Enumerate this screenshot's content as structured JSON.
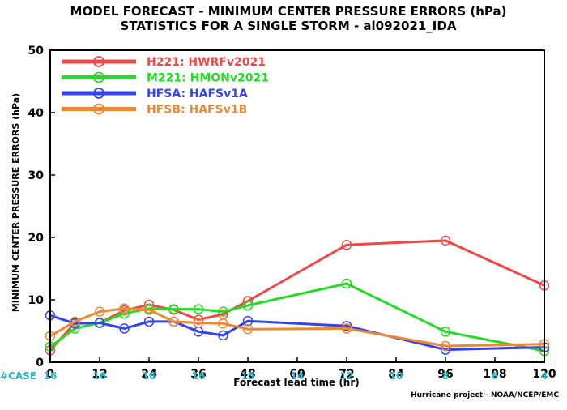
{
  "chart_data": {
    "type": "line",
    "title": "MODEL FORECAST - MINIMUM CENTER PRESSURE ERRORS (hPa)",
    "subtitle": "STATISTICS FOR A SINGLE STORM - al092021_IDA",
    "xlabel": "Forecast lead time (hr)",
    "ylabel": "MINIMUM CENTER PRESSURE ERRORS (hPa)",
    "xlim": [
      0,
      120
    ],
    "ylim": [
      0,
      50
    ],
    "x_ticks": [
      "0",
      "12",
      "24",
      "36",
      "48",
      "60",
      "72",
      "84",
      "96",
      "108",
      "120"
    ],
    "y_ticks": [
      "0",
      "10",
      "20",
      "30",
      "40",
      "50"
    ],
    "series": [
      {
        "name": "H221: HWRFv2021",
        "color": "#f04848",
        "x": [
          0,
          6,
          12,
          18,
          24,
          30,
          36,
          42,
          48,
          72,
          96,
          120
        ],
        "y": [
          1.9,
          6.3,
          6.3,
          8.3,
          9.2,
          8.4,
          6.8,
          7.7,
          9.8,
          18.8,
          19.5,
          12.3
        ]
      },
      {
        "name": "M221: HMONv2021",
        "color": "#22dd22",
        "x": [
          0,
          6,
          12,
          18,
          24,
          30,
          36,
          42,
          48,
          72,
          96,
          120
        ],
        "y": [
          2.5,
          5.4,
          6.3,
          7.8,
          8.6,
          8.5,
          8.5,
          8.1,
          9.1,
          12.6,
          4.9,
          1.8
        ]
      },
      {
        "name": "HFSA: HAFSv1A",
        "color": "#3344ee",
        "x": [
          0,
          6,
          12,
          18,
          24,
          30,
          36,
          42,
          48,
          72,
          96,
          120
        ],
        "y": [
          7.5,
          6.2,
          6.3,
          5.4,
          6.5,
          6.5,
          4.9,
          4.3,
          6.6,
          5.8,
          2.0,
          2.4
        ]
      },
      {
        "name": "HFSB: HAFSv1B",
        "color": "#ee8833",
        "x": [
          0,
          6,
          12,
          18,
          24,
          30,
          36,
          42,
          48,
          72,
          96,
          120
        ],
        "y": [
          4.2,
          6.5,
          8.1,
          8.6,
          8.4,
          6.5,
          6.3,
          6.2,
          5.3,
          5.4,
          2.6,
          2.9
        ]
      }
    ],
    "cases": {
      "label": "#CASE",
      "label_color": "#22bbcc",
      "x": [
        0,
        12,
        24,
        36,
        48,
        60,
        72,
        84,
        96,
        108,
        120
      ],
      "values": [
        "16",
        "16",
        "16",
        "16",
        "15",
        "14",
        "12",
        "10",
        "8",
        "6",
        "4"
      ]
    },
    "credit": "Hurricane project - NOAA/NCEP/EMC",
    "legend_position": "top-left",
    "grid": false
  }
}
